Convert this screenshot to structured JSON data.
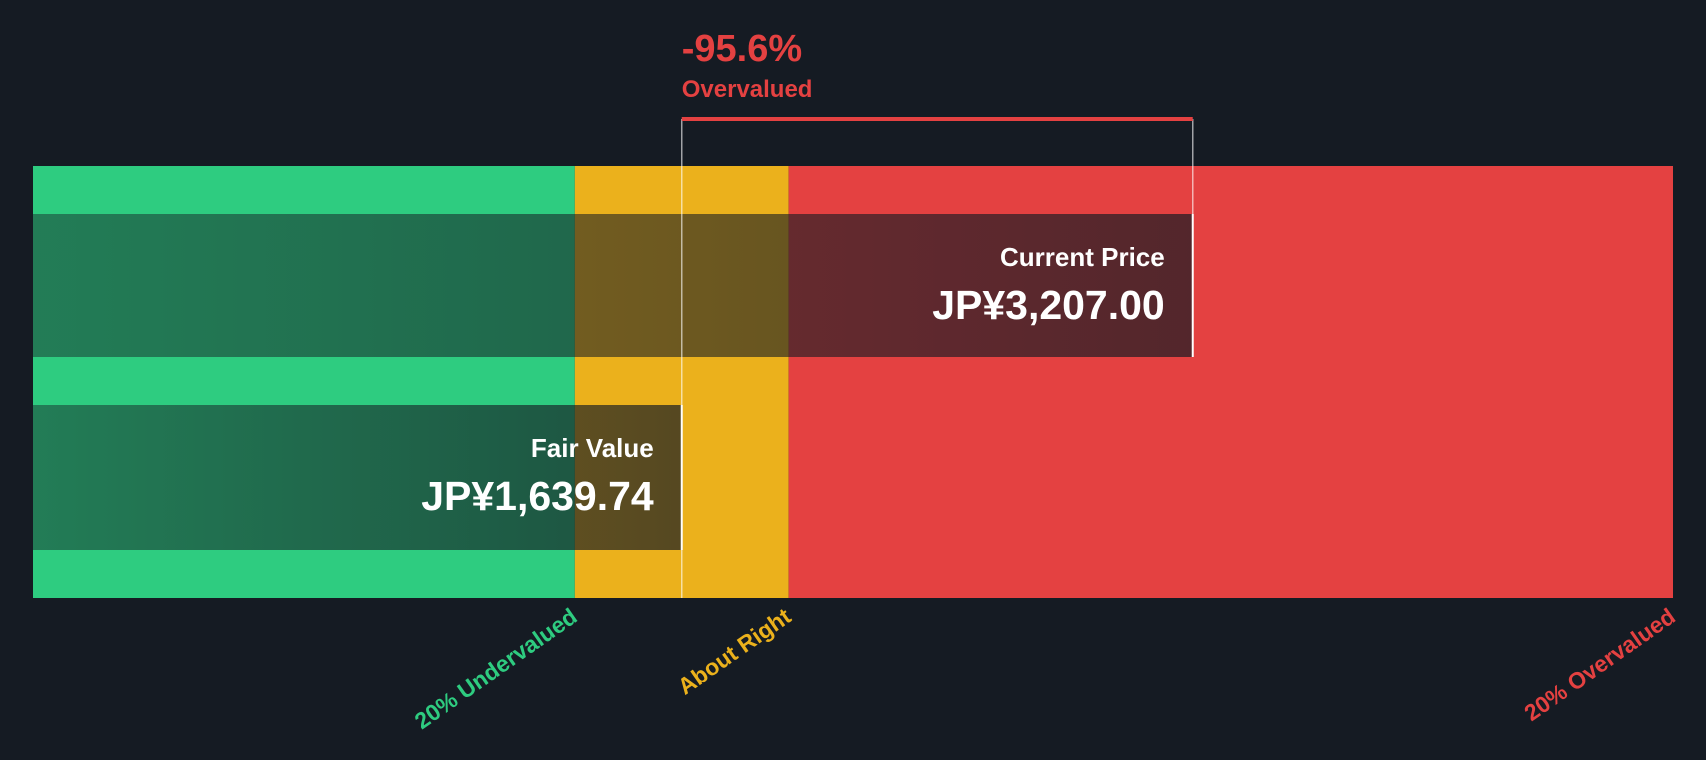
{
  "chart_data": {
    "type": "valuation",
    "categories": [
      "Current Price",
      "Fair Value"
    ],
    "values": [
      3207,
      1639.74
    ],
    "value_labels": [
      "JP¥3,207.00",
      "JP¥1,639.74"
    ],
    "xlim": [
      -350,
      4680
    ],
    "zones": [
      {
        "label": "20% Undervalued",
        "from": -350,
        "to": 1311.79,
        "color": "#2ecc80"
      },
      {
        "label": "About Right",
        "from": 1311.79,
        "to": 1967.69,
        "color": "#ebb11c"
      },
      {
        "label": "20% Overvalued",
        "from": 1967.69,
        "to": 4680,
        "color": "#e44141"
      }
    ],
    "annotation": {
      "value": -95.6,
      "label": "-95.6%",
      "text": "Overvalued",
      "color": "#e44141"
    }
  }
}
